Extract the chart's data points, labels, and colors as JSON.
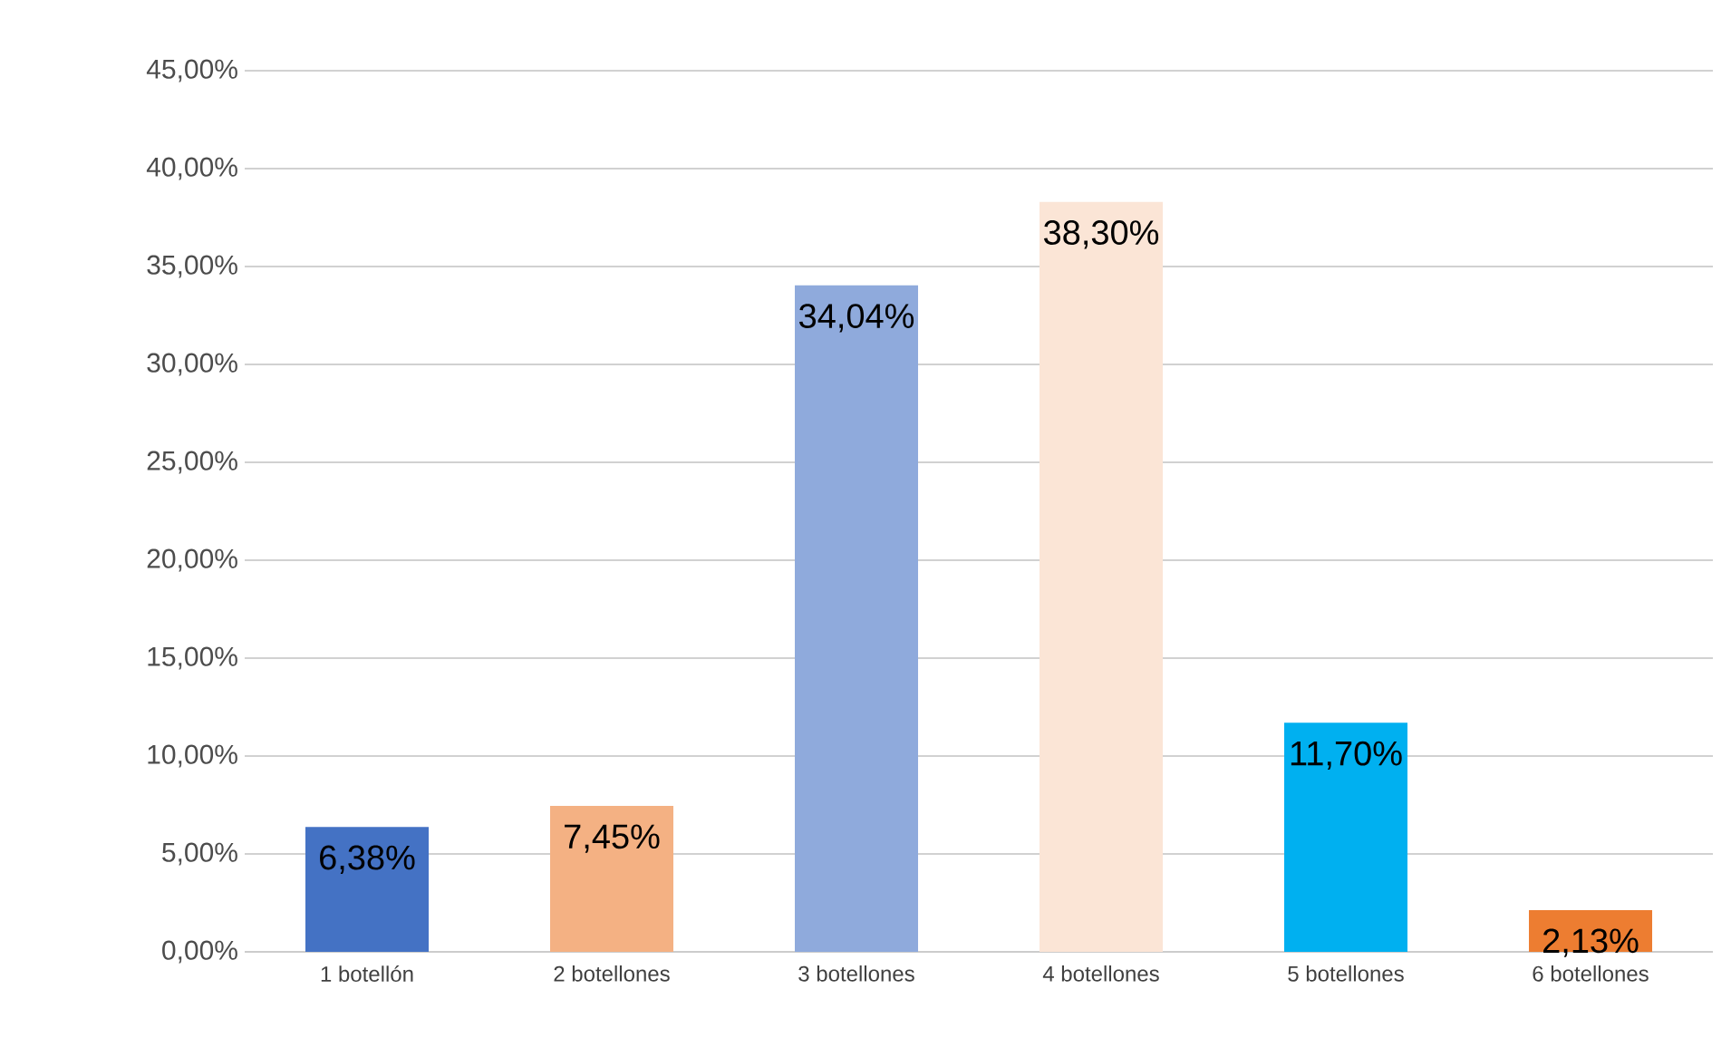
{
  "chart_data": {
    "type": "bar",
    "categories": [
      "1 botellón",
      "2 botellones",
      "3 botellones",
      "4 botellones",
      "5 botellones",
      "6 botellones"
    ],
    "values": [
      6.38,
      7.45,
      34.04,
      38.3,
      11.7,
      2.13
    ],
    "colors": [
      "#4472c4",
      "#f4b183",
      "#8faadc",
      "#fbe5d6",
      "#00b0f0",
      "#ed7d31"
    ],
    "value_labels": [
      "6,38%",
      "7,45%",
      "34,04%",
      "38,30%",
      "11,70%",
      "2,13%"
    ],
    "ylim": [
      0,
      45
    ],
    "yticks": [
      {
        "value": 0,
        "label": "0,00%"
      },
      {
        "value": 5,
        "label": "5,00%"
      },
      {
        "value": 10,
        "label": "10,00%"
      },
      {
        "value": 15,
        "label": "15,00%"
      },
      {
        "value": 20,
        "label": "20,00%"
      },
      {
        "value": 25,
        "label": "25,00%"
      },
      {
        "value": 30,
        "label": "30,00%"
      },
      {
        "value": 35,
        "label": "35,00%"
      },
      {
        "value": 40,
        "label": "40,00%"
      },
      {
        "value": 45,
        "label": "45,00%"
      }
    ],
    "grid": "y"
  }
}
